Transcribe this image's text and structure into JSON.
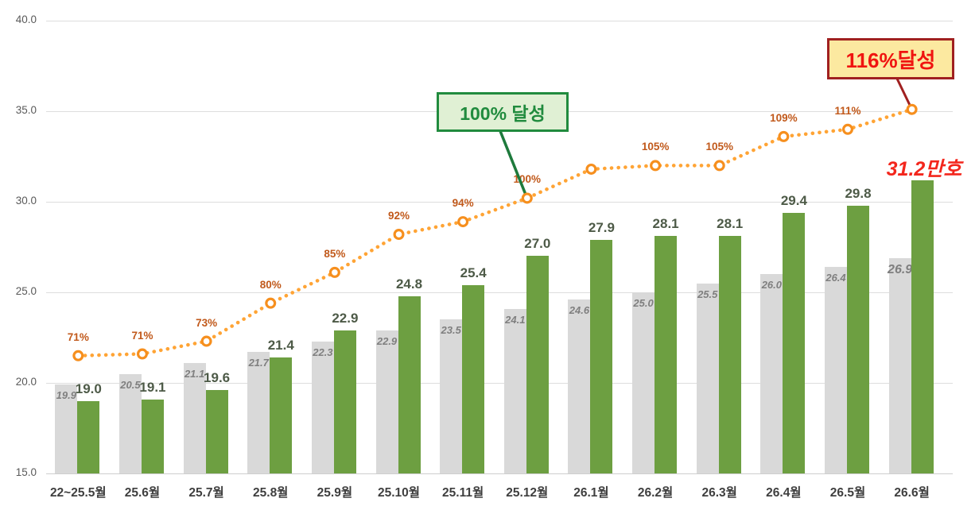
{
  "chart_data": {
    "type": "bar",
    "subtype": "grouped-bars-with-percent-line",
    "categories": [
      "22~25.5월",
      "25.6월",
      "25.7월",
      "25.8월",
      "25.9월",
      "25.10월",
      "25.11월",
      "25.12월",
      "26.1월",
      "26.2월",
      "26.3월",
      "26.4월",
      "26.5월",
      "26.6월"
    ],
    "series": [
      {
        "name": "gray-bars-cumulative-plan",
        "color": "#d9d9d9",
        "values": [
          19.9,
          20.5,
          21.1,
          21.7,
          22.3,
          22.9,
          23.5,
          24.1,
          24.6,
          25.0,
          25.5,
          26.0,
          26.4,
          26.9
        ],
        "labels": [
          "19.9",
          "20.5",
          "21.1",
          "21.7",
          "22.3",
          "22.9",
          "23.5",
          "24.1",
          "24.6",
          "25.0",
          "25.5",
          "26.0",
          "26.4",
          "26.9"
        ],
        "label_style": "italic-gray-inside-top"
      },
      {
        "name": "green-bars-cumulative-actual",
        "color": "#6d9f41",
        "values": [
          19.0,
          19.1,
          19.6,
          21.4,
          22.9,
          24.8,
          25.4,
          27.0,
          27.9,
          28.1,
          28.1,
          29.4,
          29.8,
          31.2
        ],
        "labels": [
          "19.0",
          "19.1",
          "19.6",
          "21.4",
          "22.9",
          "24.8",
          "25.4",
          "27.0",
          "27.9",
          "28.1",
          "28.1",
          "29.4",
          "29.8",
          ""
        ],
        "label_style": "bold-dark-green-above"
      }
    ],
    "line_series": {
      "name": "achievement-rate-dotted-line",
      "line_color": "#ffa435",
      "marker_color": "#f68f1e",
      "label_color": "#c1591b",
      "percent_labels": [
        "71%",
        "71%",
        "73%",
        "80%",
        "85%",
        "92%",
        "94%",
        "100%",
        "",
        "105%",
        "105%",
        "109%",
        "111%",
        ""
      ],
      "percents": [
        71,
        71,
        73,
        80,
        85,
        92,
        94,
        100,
        null,
        105,
        105,
        109,
        111,
        116
      ],
      "plot_values": [
        21.5,
        21.6,
        22.3,
        24.4,
        26.1,
        28.2,
        28.9,
        30.2,
        31.8,
        32.0,
        32.0,
        33.6,
        34.0,
        35.1
      ]
    },
    "y_axis": {
      "min": 15.0,
      "max": 40.0,
      "step": 5.0,
      "tick_labels": [
        "15.0",
        "20.0",
        "25.0",
        "30.0",
        "35.0",
        "40.0"
      ]
    },
    "xlabel": "",
    "ylabel": "",
    "title": "",
    "legend": "none",
    "grid": "horizontal",
    "annotations": {
      "green_callout": {
        "text": "100% 달성",
        "target_category": "25.12월"
      },
      "red_callout": {
        "text": "116%달성",
        "target_category": "26.6월"
      },
      "final_value": {
        "text": "31.2만호",
        "target_category": "26.6월",
        "color": "#f3261c"
      }
    }
  }
}
